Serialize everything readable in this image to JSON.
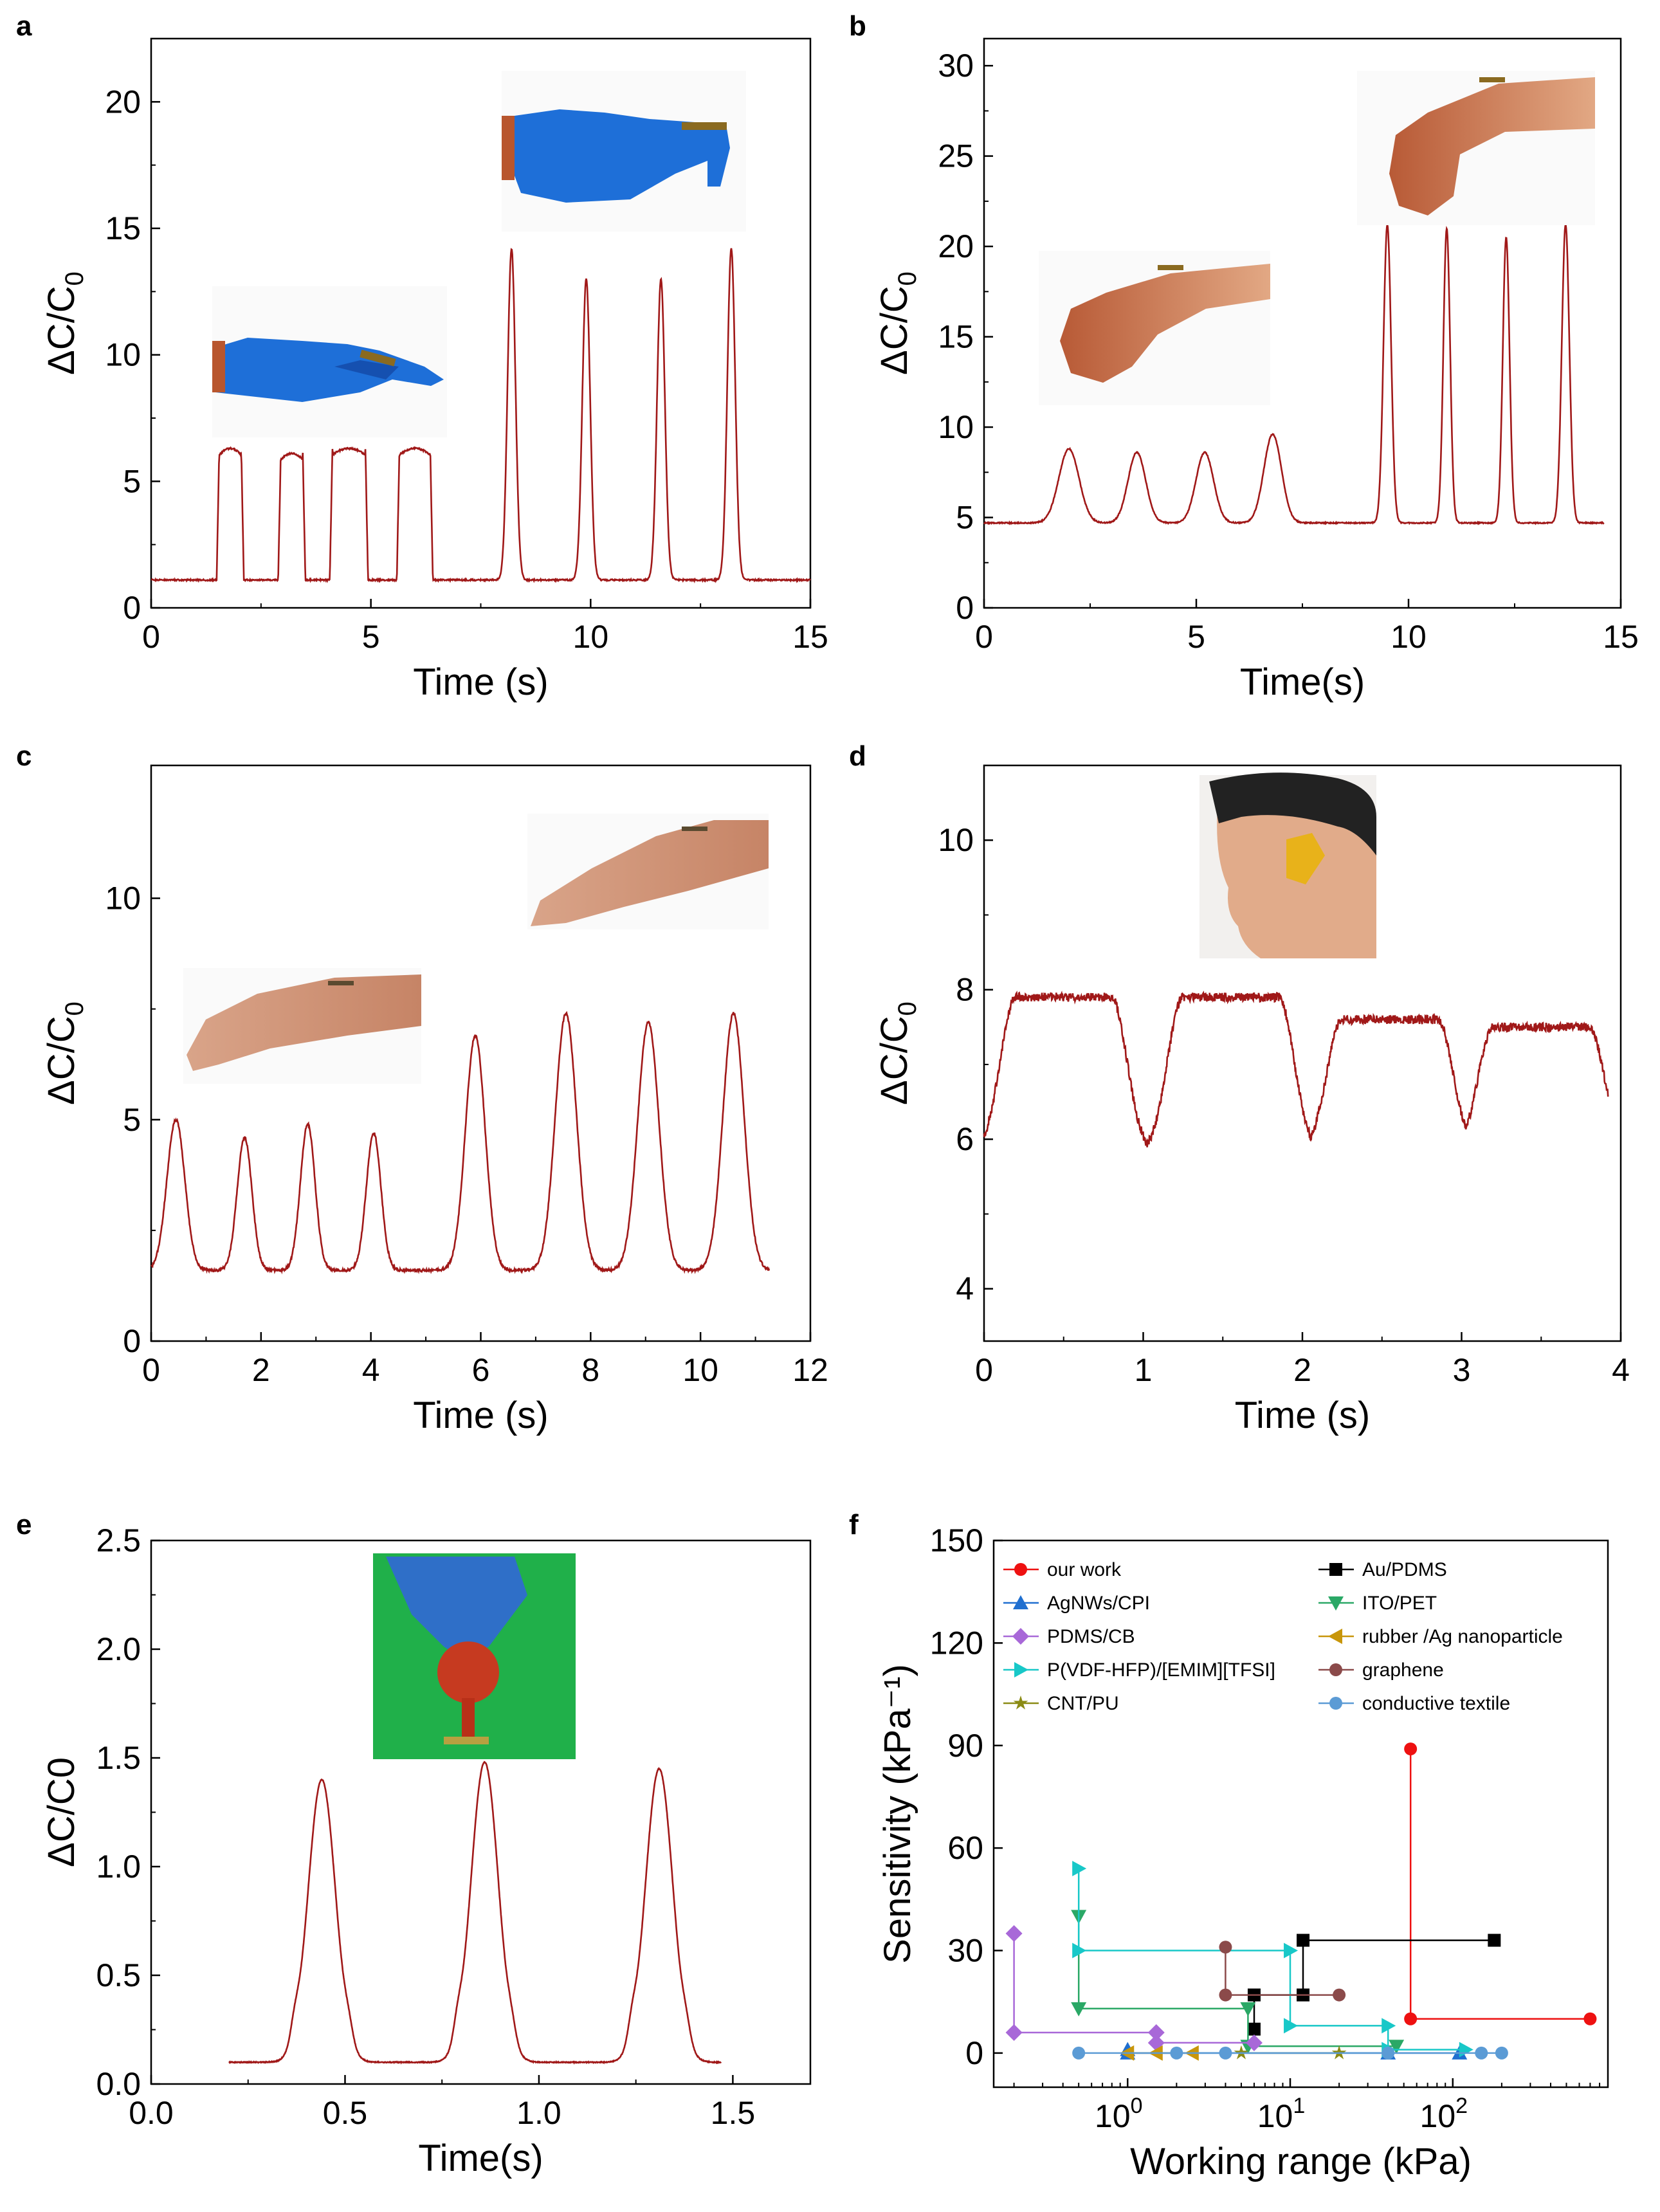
{
  "colors": {
    "trace": "#a01818",
    "axis": "#000000"
  },
  "chart_data": [
    {
      "panel": "a",
      "type": "line",
      "xlabel": "Time (s)",
      "ylabel_main": "ΔC/C",
      "ylabel_sub": "0",
      "xlim": [
        0,
        15
      ],
      "ylim": [
        0,
        22.5
      ],
      "xticks": [
        0,
        5,
        10,
        15
      ],
      "yticks": [
        0,
        5,
        10,
        15,
        20
      ],
      "baseline": 1.1,
      "peaks": [
        {
          "t": 1.8,
          "h": 6.3,
          "w": 0.5,
          "shape": "rect"
        },
        {
          "t": 3.2,
          "h": 6.1,
          "w": 0.5,
          "shape": "rect"
        },
        {
          "t": 4.5,
          "h": 6.3,
          "w": 0.75,
          "shape": "rect"
        },
        {
          "t": 6.0,
          "h": 6.3,
          "w": 0.7,
          "shape": "rect"
        },
        {
          "t": 8.2,
          "h": 14.2,
          "w": 0.45,
          "shape": "spike"
        },
        {
          "t": 9.9,
          "h": 13.0,
          "w": 0.45,
          "shape": "spike"
        },
        {
          "t": 11.6,
          "h": 13.0,
          "w": 0.45,
          "shape": "spike"
        },
        {
          "t": 13.2,
          "h": 14.2,
          "w": 0.45,
          "shape": "spike"
        }
      ],
      "insets": [
        "hand-bent-finger-photo-icon",
        "hand-straight-finger-photo-icon"
      ]
    },
    {
      "panel": "b",
      "type": "line",
      "xlabel": "Time(s)",
      "ylabel_main": "ΔC/C",
      "ylabel_sub": "0",
      "xlim": [
        0,
        15
      ],
      "ylim": [
        0,
        31.5
      ],
      "xticks": [
        0,
        5,
        10,
        15
      ],
      "yticks": [
        0,
        5,
        10,
        15,
        20,
        25,
        30
      ],
      "baseline": 4.7,
      "peaks": [
        {
          "t": 2.0,
          "h": 8.8,
          "w": 0.8,
          "shape": "bump"
        },
        {
          "t": 3.6,
          "h": 8.6,
          "w": 0.7,
          "shape": "bump"
        },
        {
          "t": 5.2,
          "h": 8.6,
          "w": 0.7,
          "shape": "bump"
        },
        {
          "t": 6.8,
          "h": 9.6,
          "w": 0.7,
          "shape": "bump"
        },
        {
          "t": 9.5,
          "h": 21.2,
          "w": 0.45,
          "shape": "spike"
        },
        {
          "t": 10.9,
          "h": 21.0,
          "w": 0.4,
          "shape": "spike"
        },
        {
          "t": 12.3,
          "h": 20.5,
          "w": 0.4,
          "shape": "spike"
        },
        {
          "t": 13.7,
          "h": 21.2,
          "w": 0.45,
          "shape": "spike"
        }
      ],
      "insets": [
        "wrist-bent-photo-icon",
        "wrist-fist-photo-icon"
      ]
    },
    {
      "panel": "c",
      "type": "line",
      "xlabel": "Time (s)",
      "ylabel_main": "ΔC/C",
      "ylabel_sub": "0",
      "xlim": [
        0,
        12
      ],
      "ylim": [
        0,
        13
      ],
      "xticks": [
        0,
        2,
        4,
        6,
        8,
        10,
        12
      ],
      "yticks": [
        0,
        5,
        10
      ],
      "baseline": 1.6,
      "peaks": [
        {
          "t": 0.45,
          "h": 5.0,
          "w": 0.55,
          "shape": "bump"
        },
        {
          "t": 1.7,
          "h": 4.6,
          "w": 0.45,
          "shape": "bump"
        },
        {
          "t": 2.85,
          "h": 4.9,
          "w": 0.45,
          "shape": "bump"
        },
        {
          "t": 4.05,
          "h": 4.7,
          "w": 0.45,
          "shape": "bump"
        },
        {
          "t": 5.9,
          "h": 6.9,
          "w": 0.6,
          "shape": "bump"
        },
        {
          "t": 7.55,
          "h": 7.4,
          "w": 0.65,
          "shape": "bump"
        },
        {
          "t": 9.05,
          "h": 7.2,
          "w": 0.65,
          "shape": "bump"
        },
        {
          "t": 10.6,
          "h": 7.4,
          "w": 0.65,
          "shape": "bump"
        }
      ],
      "insets": [
        "arm-straight-photo-icon",
        "arm-bent-photo-icon"
      ]
    },
    {
      "panel": "d",
      "type": "line",
      "xlabel": "Time (s)",
      "ylabel_main": "ΔC/C",
      "ylabel_sub": "0",
      "xlim": [
        0,
        4
      ],
      "ylim": [
        3.3,
        11
      ],
      "xticks": [
        0,
        1,
        2,
        3,
        4
      ],
      "yticks": [
        4,
        6,
        8,
        10
      ],
      "baseline": 5.8,
      "peaks": [
        {
          "t": 0.5,
          "h": 7.9,
          "w": 0.6,
          "shape": "plateau"
        },
        {
          "t": 1.55,
          "h": 7.9,
          "w": 0.6,
          "shape": "plateau"
        },
        {
          "t": 2.55,
          "h": 7.6,
          "w": 0.6,
          "shape": "plateau"
        },
        {
          "t": 3.5,
          "h": 7.5,
          "w": 0.6,
          "shape": "plateau"
        }
      ],
      "insets": [
        "face-sensor-photo-icon"
      ]
    },
    {
      "panel": "e",
      "type": "line",
      "xlabel": "Time(s)",
      "ylabel_main": "ΔC/C0",
      "ylabel_sub": "",
      "xlim": [
        0,
        1.7
      ],
      "ylim": [
        0,
        2.5
      ],
      "xticks": [
        "0.0",
        "0.5",
        "1.0",
        "1.5"
      ],
      "yticks": [
        "0.0",
        "0.5",
        "1.0",
        "1.5",
        "2.0",
        "2.5"
      ],
      "baseline": 0.1,
      "peaks": [
        {
          "t": 0.44,
          "h": 1.4,
          "w": 0.05,
          "shape": "gauss"
        },
        {
          "t": 0.86,
          "h": 1.48,
          "w": 0.05,
          "shape": "gauss"
        },
        {
          "t": 1.31,
          "h": 1.45,
          "w": 0.05,
          "shape": "gauss"
        }
      ],
      "insets": [
        "ball-press-photo-icon"
      ]
    },
    {
      "panel": "f",
      "type": "scatter",
      "xlabel": "Working range (kPa)",
      "ylabel": "Sensitivity (kPa⁻¹)",
      "xscale": "log",
      "xlim": [
        0.15,
        900
      ],
      "ylim": [
        -10,
        150
      ],
      "xticks": [
        {
          "base": "10",
          "exp": "0",
          "v": 1
        },
        {
          "base": "10",
          "exp": "1",
          "v": 10
        },
        {
          "base": "10",
          "exp": "2",
          "v": 100
        }
      ],
      "yticks": [
        0,
        30,
        60,
        90,
        120,
        150
      ],
      "series": [
        {
          "name": "our work",
          "color": "#ee1111",
          "marker": "circle",
          "points": [
            [
              55,
              89
            ],
            [
              55,
              10
            ],
            [
              700,
              10
            ]
          ]
        },
        {
          "name": "Au/PDMS",
          "color": "#000000",
          "marker": "square",
          "points": [
            [
              6,
              7
            ],
            [
              6,
              17
            ],
            [
              12,
              17
            ],
            [
              12,
              33
            ],
            [
              180,
              33
            ]
          ]
        },
        {
          "name": "AgNWs/CPI",
          "color": "#1f6fd0",
          "marker": "triangle-up",
          "points": [
            [
              1,
              1
            ],
            [
              1,
              0
            ],
            [
              40,
              0
            ],
            [
              110,
              0
            ]
          ]
        },
        {
          "name": "ITO/PET",
          "color": "#2aa866",
          "marker": "triangle-down",
          "points": [
            [
              0.5,
              40
            ],
            [
              0.5,
              13
            ],
            [
              5.5,
              13
            ],
            [
              5.5,
              2
            ],
            [
              45,
              2
            ]
          ]
        },
        {
          "name": "PDMS/CB",
          "color": "#a868d8",
          "marker": "diamond",
          "points": [
            [
              0.2,
              35
            ],
            [
              0.2,
              6
            ],
            [
              1.5,
              6
            ],
            [
              1.5,
              3
            ],
            [
              6,
              3
            ]
          ]
        },
        {
          "name": "rubber /Ag nanoparticle",
          "color": "#c8960a",
          "marker": "triangle-left",
          "points": [
            [
              1,
              0
            ],
            [
              1.5,
              0
            ],
            [
              2.5,
              0
            ]
          ]
        },
        {
          "name": "P(VDF-HFP)/[EMIM][TFSI]",
          "color": "#18c8c8",
          "marker": "triangle-right",
          "points": [
            [
              0.5,
              54
            ],
            [
              0.5,
              30
            ],
            [
              10,
              30
            ],
            [
              10,
              8
            ],
            [
              40,
              8
            ],
            [
              40,
              1
            ],
            [
              120,
              1
            ]
          ]
        },
        {
          "name": "graphene",
          "color": "#8b4a4a",
          "marker": "circle",
          "points": [
            [
              4,
              31
            ],
            [
              4,
              17
            ],
            [
              20,
              17
            ]
          ]
        },
        {
          "name": "CNT/PU",
          "color": "#8b8b14",
          "marker": "star",
          "points": [
            [
              5,
              0
            ],
            [
              20,
              0
            ]
          ]
        },
        {
          "name": "conductive textile",
          "color": "#5b9bd5",
          "marker": "circle",
          "points": [
            [
              0.5,
              0
            ],
            [
              2,
              0
            ],
            [
              4,
              0
            ],
            [
              40,
              0
            ],
            [
              150,
              0
            ],
            [
              200,
              0
            ]
          ]
        }
      ]
    }
  ]
}
